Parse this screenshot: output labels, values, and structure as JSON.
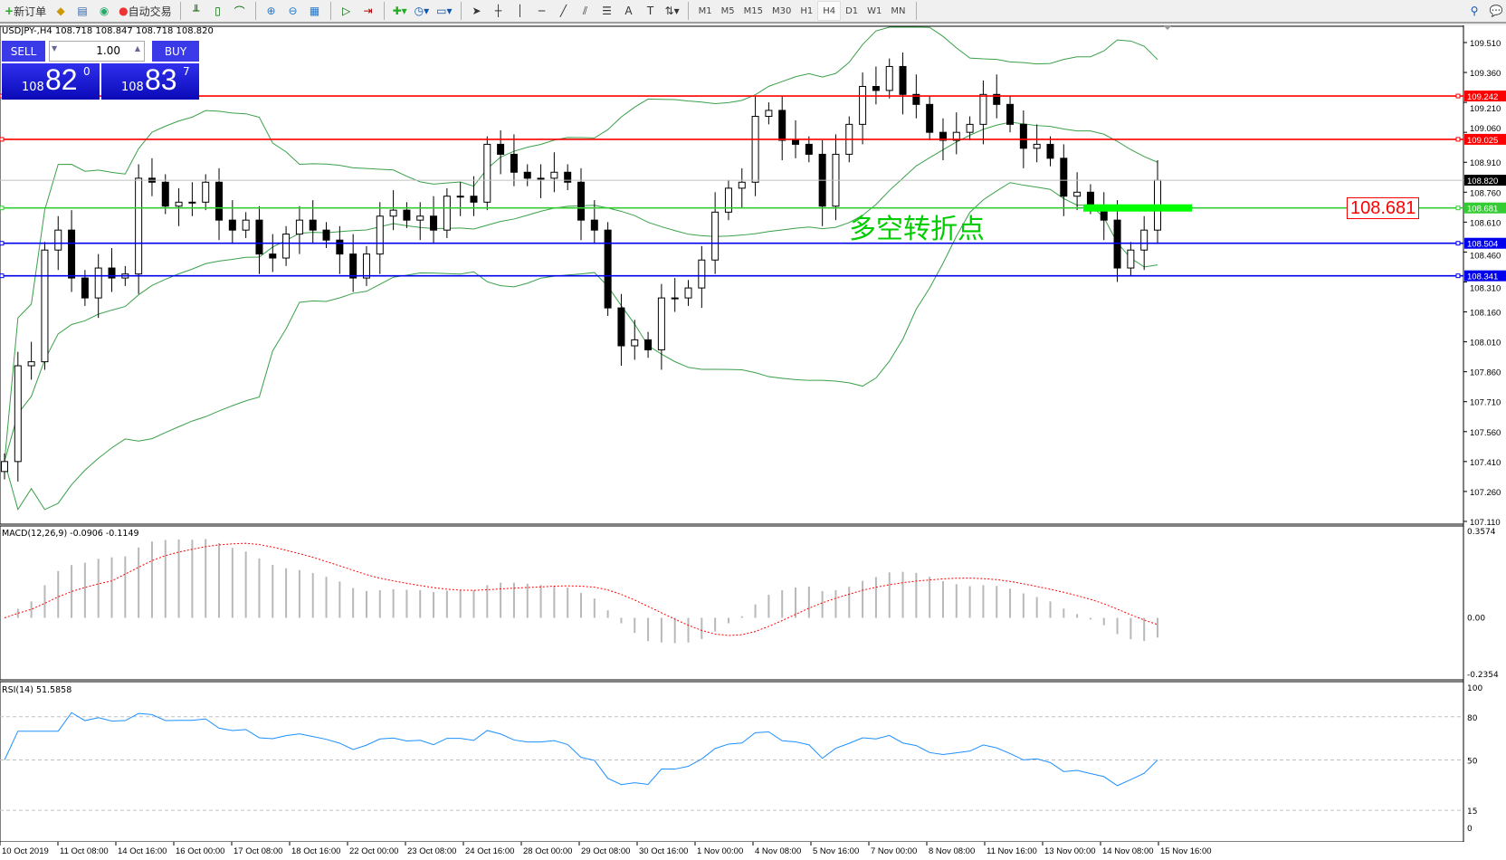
{
  "toolbar": {
    "new_order": "新订单",
    "auto_trading": "自动交易",
    "timeframes": [
      "M1",
      "M5",
      "M15",
      "M30",
      "H1",
      "H4",
      "D1",
      "W1",
      "MN"
    ],
    "active_timeframe": "H4"
  },
  "chart": {
    "header": "USDJPY-,H4  108.718 108.847 108.718 108.820"
  },
  "trade_panel": {
    "sell_label": "SELL",
    "buy_label": "BUY",
    "lot": "1.00",
    "bid_big": "108",
    "bid_main": "82",
    "bid_sup": "0",
    "ask_big": "108",
    "ask_main": "83",
    "ask_sup": "7"
  },
  "annotation": {
    "text": "多空转折点",
    "price_box": "108.681",
    "color": "#00cc00"
  },
  "chart_data": {
    "type": "candlestick",
    "symbol": "USDJPY",
    "timeframe": "H4",
    "price_axis": [
      "109.510",
      "109.360",
      "109.210",
      "109.060",
      "108.910",
      "108.760",
      "108.610",
      "108.460",
      "108.310",
      "108.160",
      "108.010",
      "107.860",
      "107.710",
      "107.560",
      "107.410",
      "107.260",
      "107.110"
    ],
    "time_axis": [
      "10 Oct 2019",
      "11 Oct 08:00",
      "14 Oct 16:00",
      "16 Oct 00:00",
      "17 Oct 08:00",
      "18 Oct 16:00",
      "22 Oct 00:00",
      "23 Oct 08:00",
      "24 Oct 16:00",
      "28 Oct 00:00",
      "29 Oct 08:00",
      "30 Oct 16:00",
      "1 Nov 00:00",
      "4 Nov 08:00",
      "5 Nov 16:00",
      "7 Nov 00:00",
      "8 Nov 08:00",
      "11 Nov 16:00",
      "13 Nov 00:00",
      "14 Nov 08:00",
      "15 Nov 16:00"
    ],
    "close": [
      107.41,
      107.89,
      107.91,
      108.47,
      108.57,
      108.33,
      108.23,
      108.38,
      108.33,
      108.35,
      108.83,
      108.81,
      108.69,
      108.71,
      108.71,
      108.81,
      108.62,
      108.57,
      108.62,
      108.45,
      108.43,
      108.55,
      108.62,
      108.57,
      108.52,
      108.45,
      108.33,
      108.45,
      108.64,
      108.67,
      108.62,
      108.64,
      108.57,
      108.74,
      108.74,
      108.71,
      109.0,
      108.95,
      108.86,
      108.83,
      108.83,
      108.86,
      108.81,
      108.62,
      108.57,
      108.18,
      107.99,
      108.02,
      107.97,
      108.23,
      108.23,
      108.28,
      108.42,
      108.66,
      108.78,
      108.81,
      109.14,
      109.17,
      109.02,
      109.0,
      108.95,
      108.69,
      108.95,
      109.1,
      109.29,
      109.27,
      109.39,
      109.25,
      109.2,
      109.06,
      109.02,
      109.06,
      109.1,
      109.25,
      109.2,
      109.1,
      108.98,
      109.0,
      108.93,
      108.74,
      108.76,
      108.69,
      108.62,
      108.38,
      108.47,
      108.57,
      108.82
    ],
    "levels": [
      {
        "price": "109.242",
        "color": "#ff0000"
      },
      {
        "price": "109.025",
        "color": "#ff0000"
      },
      {
        "price": "108.820",
        "color": "#c0c0c0"
      },
      {
        "price": "108.681",
        "color": "#33cc33"
      },
      {
        "price": "108.504",
        "color": "#0000ee"
      },
      {
        "price": "108.341",
        "color": "#0000ee"
      }
    ],
    "macd": {
      "label": "MACD(12,26,9) -0.0906 -0.1149",
      "axis": [
        "0.3574",
        "0.00",
        "-0.2354"
      ]
    },
    "rsi": {
      "label": "RSI(14) 51.5858",
      "axis": [
        "100",
        "80",
        "50",
        "15",
        "0"
      ]
    }
  }
}
